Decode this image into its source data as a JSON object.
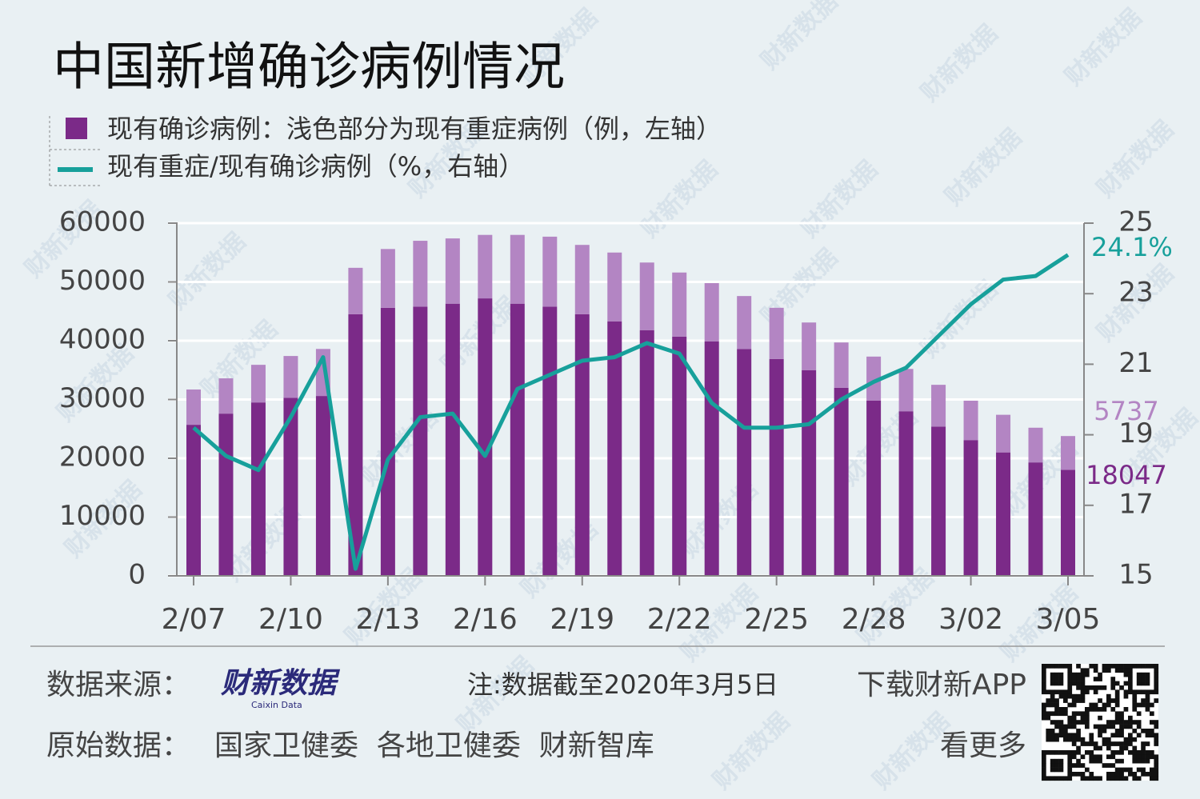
{
  "watermark": "财新数据",
  "chart_data": {
    "type": "bar",
    "title": "中国新增确诊病例情况",
    "categories": [
      "2/07",
      null,
      null,
      "2/10",
      null,
      null,
      "2/13",
      null,
      null,
      "2/16",
      null,
      null,
      "2/19",
      null,
      null,
      "2/22",
      null,
      null,
      "2/25",
      null,
      null,
      "2/28",
      null,
      null,
      "3/02",
      null,
      null,
      "3/05"
    ],
    "series": [
      {
        "name": "现有确诊病例：浅色部分为现有重症病例（例，左轴）",
        "color": "#7b2a88",
        "values": [
          25700,
          27600,
          29500,
          30300,
          30600,
          44500,
          45600,
          45800,
          46300,
          47200,
          46300,
          45800,
          44500,
          43300,
          41800,
          40700,
          39900,
          38600,
          36900,
          35000,
          32000,
          29800,
          28000,
          25400,
          23100,
          21000,
          19300,
          18047
        ]
      },
      {
        "color": "#b385c3",
        "values": [
          6000,
          6000,
          6400,
          7100,
          8000,
          7900,
          10000,
          11200,
          11100,
          10800,
          11700,
          11900,
          11800,
          11700,
          11500,
          10900,
          9900,
          9000,
          8700,
          8100,
          7700,
          7500,
          7200,
          7100,
          6700,
          6400,
          5900,
          5737
        ]
      },
      {
        "name": "现有重症/现有确诊病例（%，右轴）",
        "color": "#17a09b",
        "axis": "y2",
        "type": "line",
        "values": [
          19.2,
          18.4,
          18.0,
          19.5,
          21.2,
          15.2,
          18.3,
          19.5,
          19.6,
          18.4,
          20.3,
          20.7,
          21.1,
          21.2,
          21.6,
          21.3,
          19.9,
          19.2,
          19.2,
          19.3,
          20.0,
          20.5,
          20.9,
          21.8,
          22.7,
          23.4,
          23.5,
          24.1
        ],
        "value_labels": [
          null,
          null,
          null,
          null,
          null,
          null,
          null,
          null,
          null,
          null,
          null,
          null,
          null,
          null,
          null,
          null,
          null,
          null,
          null,
          null,
          null,
          null,
          null,
          null,
          null,
          null,
          null,
          "24.1%"
        ]
      }
    ],
    "ylim": [
      0,
      60000
    ],
    "yticks": [
      0,
      10000,
      20000,
      30000,
      40000,
      50000,
      60000
    ],
    "y2lim": [
      15,
      25
    ],
    "y2ticks": [
      15,
      17,
      19,
      21,
      23,
      25
    ],
    "grid": true
  },
  "footer": {
    "source_label": "数据来源：",
    "logo": "财新数据",
    "logo_sub": "Caixin Data",
    "note": "注:数据截至2020年3月5日",
    "download": "下载财新APP",
    "raw_label": "原始数据：",
    "raw_sources": "国家卫健委  各地卫健委  财新智库",
    "more": "看更多"
  }
}
